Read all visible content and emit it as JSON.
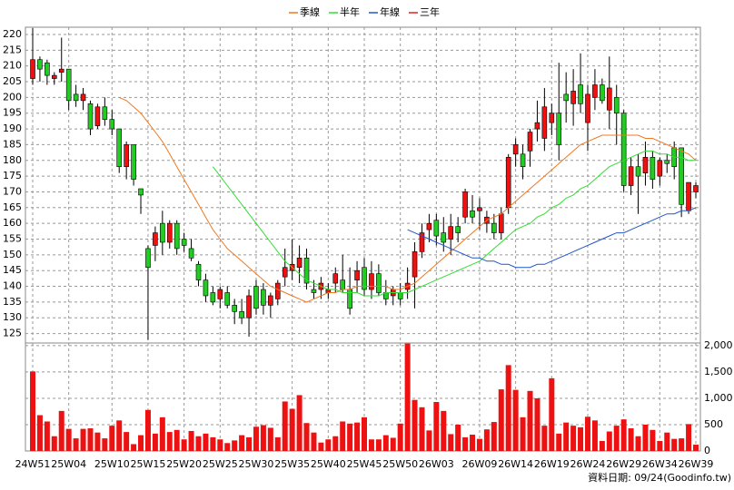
{
  "chart_data": {
    "type": "candlestick",
    "categories": [
      "24W51",
      null,
      null,
      null,
      null,
      "25W04",
      null,
      null,
      null,
      null,
      null,
      "25W10",
      null,
      null,
      null,
      null,
      "25W15",
      null,
      null,
      null,
      null,
      "25W20",
      null,
      null,
      null,
      null,
      "25W25",
      null,
      null,
      null,
      null,
      "25W30",
      null,
      null,
      null,
      null,
      "25W35",
      null,
      null,
      null,
      null,
      "25W40",
      null,
      null,
      null,
      null,
      "25W45",
      null,
      null,
      null,
      null,
      "25W50",
      null,
      null,
      null,
      null,
      "26W03",
      null,
      null,
      null,
      null,
      null,
      "26W09",
      null,
      null,
      null,
      null,
      "26W14",
      null,
      null,
      null,
      null,
      "26W19",
      null,
      null,
      null,
      null,
      "26W24",
      null,
      null,
      null,
      null,
      "26W29",
      null,
      null,
      null,
      null,
      "26W34",
      null,
      null,
      null,
      null,
      "26W39"
    ],
    "open": [
      206,
      212,
      211,
      206,
      208,
      209,
      201,
      199,
      198,
      191,
      197,
      193,
      190,
      178,
      185,
      171,
      152,
      153,
      160,
      154,
      160,
      155,
      152,
      147,
      142,
      138,
      136,
      138,
      134,
      132,
      130,
      140,
      139,
      134,
      136,
      143,
      145,
      146,
      149,
      139,
      139,
      138,
      141,
      142,
      139,
      142,
      146,
      139,
      144,
      138,
      137,
      138,
      139,
      143,
      151,
      158,
      161,
      157,
      155,
      159,
      162,
      164,
      164,
      160,
      160,
      157,
      165,
      182,
      182,
      183,
      190,
      187,
      192,
      195,
      201,
      198,
      204,
      192,
      200,
      204,
      196,
      200,
      195,
      172,
      178,
      176,
      181,
      175,
      180,
      184,
      184,
      164,
      170
    ],
    "high": [
      222,
      213,
      212,
      208,
      219,
      209,
      204,
      203,
      199,
      198,
      200,
      196,
      190,
      186,
      185,
      171,
      153,
      159,
      164,
      161,
      161,
      157,
      155,
      148,
      144,
      140,
      140,
      140,
      136,
      136,
      139,
      142,
      141,
      138,
      142,
      152,
      155,
      153,
      152,
      142,
      143,
      141,
      146,
      150,
      146,
      148,
      149,
      148,
      147,
      142,
      140,
      141,
      146,
      154,
      160,
      163,
      163,
      162,
      163,
      162,
      171,
      169,
      168,
      164,
      163,
      165,
      182,
      187,
      185,
      190,
      199,
      203,
      198,
      211,
      208,
      209,
      214,
      204,
      209,
      206,
      213,
      204,
      196,
      181,
      182,
      186,
      183,
      181,
      182,
      186,
      184,
      173,
      173
    ],
    "low": [
      204,
      205,
      204,
      204,
      205,
      196,
      197,
      196,
      188,
      190,
      191,
      188,
      176,
      174,
      172,
      163,
      123,
      148,
      150,
      152,
      150,
      151,
      148,
      140,
      135,
      134,
      133,
      133,
      128,
      128,
      124,
      131,
      131,
      130,
      134,
      140,
      142,
      141,
      139,
      136,
      136,
      136,
      138,
      138,
      131,
      138,
      137,
      136,
      137,
      134,
      134,
      134,
      136,
      133,
      149,
      154,
      153,
      151,
      150,
      154,
      160,
      160,
      158,
      157,
      155,
      155,
      163,
      178,
      174,
      178,
      186,
      183,
      188,
      180,
      192,
      191,
      195,
      183,
      196,
      198,
      190,
      185,
      170,
      169,
      163,
      172,
      171,
      172,
      176,
      174,
      162,
      163,
      168
    ],
    "close": [
      212,
      209,
      207,
      207,
      209,
      199,
      199,
      201,
      190,
      197,
      193,
      190,
      178,
      185,
      174,
      169,
      146,
      157,
      154,
      160,
      152,
      153,
      149,
      142,
      137,
      135,
      139,
      134,
      132,
      130,
      137,
      133,
      134,
      137,
      141,
      146,
      147,
      149,
      141,
      138,
      141,
      139,
      144,
      139,
      133,
      145,
      139,
      144,
      138,
      136,
      139,
      136,
      141,
      151,
      157,
      160,
      156,
      154,
      159,
      157,
      170,
      162,
      165,
      162,
      157,
      163,
      181,
      185,
      178,
      189,
      192,
      197,
      195,
      185,
      199,
      202,
      198,
      201,
      204,
      199,
      203,
      195,
      172,
      178,
      175,
      181,
      174,
      180,
      179,
      178,
      166,
      173,
      172
    ],
    "up_color": "#ee1111",
    "down_color": "#22cc22",
    "ylim": [
      122,
      222.3
    ],
    "yticks": [
      125,
      130,
      135,
      140,
      145,
      150,
      155,
      160,
      165,
      170,
      175,
      180,
      185,
      190,
      195,
      200,
      205,
      210,
      215,
      220
    ],
    "grid": true,
    "series": [
      {
        "name": "季線",
        "color": "#f07820",
        "values": [
          null,
          null,
          null,
          null,
          null,
          null,
          null,
          null,
          null,
          null,
          null,
          null,
          200,
          199,
          197,
          195,
          192,
          189,
          186,
          182,
          178,
          174,
          170,
          166,
          162,
          158,
          155,
          152,
          150,
          148,
          146,
          144,
          142,
          140,
          139,
          138,
          137,
          136,
          135,
          136,
          137,
          138,
          138,
          139,
          139,
          140,
          140,
          140,
          140,
          140,
          139,
          139,
          140,
          141,
          143,
          145,
          147,
          149,
          151,
          153,
          155,
          157,
          159,
          161,
          162,
          163,
          165,
          167,
          169,
          171,
          173,
          175,
          177,
          179,
          181,
          183,
          185,
          186,
          187,
          188,
          188,
          188,
          188,
          188,
          188,
          187,
          187,
          186,
          185,
          184,
          183,
          182,
          180
        ]
      },
      {
        "name": "半年",
        "color": "#33dd33",
        "values": [
          null,
          null,
          null,
          null,
          null,
          null,
          null,
          null,
          null,
          null,
          null,
          null,
          null,
          null,
          null,
          null,
          null,
          null,
          null,
          null,
          null,
          null,
          null,
          null,
          null,
          178,
          175,
          172,
          169,
          166,
          163,
          160,
          157,
          154,
          151,
          148,
          146,
          144,
          142,
          141,
          140,
          139,
          139,
          138,
          138,
          138,
          137,
          137,
          137,
          138,
          138,
          138,
          138,
          139,
          140,
          141,
          142,
          143,
          144,
          145,
          146,
          147,
          148,
          150,
          152,
          154,
          156,
          158,
          159,
          160,
          162,
          163,
          165,
          166,
          168,
          169,
          171,
          172,
          174,
          176,
          178,
          179,
          180,
          181,
          182,
          183,
          183,
          182,
          182,
          181,
          181,
          180,
          180
        ]
      },
      {
        "name": "年線",
        "color": "#2255cc",
        "values": [
          null,
          null,
          null,
          null,
          null,
          null,
          null,
          null,
          null,
          null,
          null,
          null,
          null,
          null,
          null,
          null,
          null,
          null,
          null,
          null,
          null,
          null,
          null,
          null,
          null,
          null,
          null,
          null,
          null,
          null,
          null,
          null,
          null,
          null,
          null,
          null,
          null,
          null,
          null,
          null,
          null,
          null,
          null,
          null,
          null,
          null,
          null,
          null,
          null,
          null,
          null,
          null,
          158,
          157,
          156,
          155,
          154,
          153,
          152,
          151,
          150,
          149,
          149,
          148,
          148,
          147,
          147,
          146,
          146,
          146,
          147,
          147,
          148,
          149,
          150,
          151,
          152,
          153,
          154,
          155,
          156,
          157,
          157,
          158,
          159,
          160,
          161,
          162,
          163,
          163,
          164,
          164,
          165
        ]
      },
      {
        "name": "三年",
        "color": "#dd2222",
        "values": [
          null,
          null,
          null,
          null,
          null,
          null,
          null,
          null,
          null,
          null,
          null,
          null,
          null,
          null,
          null,
          null,
          null,
          null,
          null,
          null,
          null,
          null,
          null,
          null,
          null,
          null,
          null,
          null,
          null,
          null,
          null,
          null,
          null,
          null,
          null,
          null,
          null,
          null,
          null,
          null,
          null,
          null,
          null,
          null,
          null,
          null,
          null,
          null,
          null,
          null,
          null,
          null,
          null,
          null,
          null,
          null,
          null,
          null,
          null,
          null,
          null,
          null,
          null,
          null,
          null,
          null,
          null,
          null,
          null,
          null,
          null,
          null,
          null,
          null,
          null,
          null,
          null,
          null,
          null,
          null,
          null,
          null,
          null,
          null,
          null,
          null,
          null,
          null,
          null,
          null,
          null,
          null,
          null
        ]
      }
    ],
    "volume": {
      "color": "#ee1111",
      "values": [
        1510,
        680,
        560,
        280,
        760,
        420,
        240,
        420,
        430,
        350,
        240,
        480,
        580,
        360,
        130,
        300,
        780,
        330,
        640,
        360,
        400,
        220,
        380,
        280,
        330,
        260,
        220,
        150,
        200,
        300,
        260,
        460,
        490,
        440,
        260,
        940,
        800,
        1060,
        530,
        350,
        160,
        220,
        280,
        560,
        520,
        540,
        640,
        220,
        220,
        300,
        250,
        520,
        2040,
        970,
        830,
        390,
        930,
        760,
        320,
        500,
        260,
        310,
        230,
        410,
        550,
        1170,
        1630,
        1160,
        640,
        1140,
        1000,
        480,
        1380,
        330,
        540,
        480,
        450,
        650,
        580,
        190,
        370,
        480,
        600,
        430,
        280,
        500,
        400,
        190,
        350,
        230,
        240,
        510,
        120
      ],
      "ylim": [
        0,
        2050
      ],
      "yticks": [
        0,
        500,
        {
          "value": 1000,
          "label": "1,000"
        },
        {
          "value": 1500,
          "label": "1,500"
        },
        {
          "value": 2000,
          "label": "2,000"
        }
      ]
    },
    "footnote": "資料日期: 09/24",
    "source": "(Goodinfo.tw)"
  }
}
